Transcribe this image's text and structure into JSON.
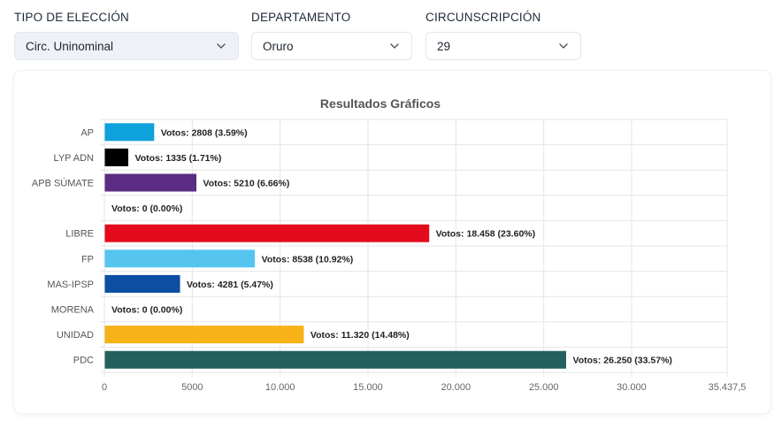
{
  "filters": {
    "election_type": {
      "label": "TIPO DE ELECCIÓN",
      "value": "Circ. Uninominal"
    },
    "department": {
      "label": "DEPARTAMENTO",
      "value": "Oruro"
    },
    "constituency": {
      "label": "CIRCUNSCRIPCIÓN",
      "value": "29"
    }
  },
  "chart_data": {
    "type": "bar",
    "orientation": "horizontal",
    "title": "Resultados Gráficos",
    "categories": [
      "AP",
      "LYP ADN",
      "APB SÚMATE",
      "",
      "LIBRE",
      "FP",
      "MAS-IPSP",
      "MORENA",
      "UNIDAD",
      "PDC"
    ],
    "values": [
      2808,
      1335,
      5210,
      0,
      18458,
      8538,
      4281,
      0,
      11320,
      26250
    ],
    "data_labels": [
      "Votos: 2808 (3.59%)",
      "Votos: 1335 (1.71%)",
      "Votos: 5210 (6.66%)",
      "Votos: 0 (0.00%)",
      "Votos: 18.458 (23.60%)",
      "Votos: 8538 (10.92%)",
      "Votos: 4281 (5.47%)",
      "Votos: 0 (0.00%)",
      "Votos: 11.320 (14.48%)",
      "Votos: 26.250 (33.57%)"
    ],
    "colors": [
      "#0ea1dc",
      "#000000",
      "#5b2d82",
      "#cccccc",
      "#e30b1c",
      "#55c5f0",
      "#0b4ea2",
      "#8b1a1a",
      "#f7b217",
      "#23605f"
    ],
    "x_ticks": [
      0,
      5000,
      10000,
      15000,
      20000,
      25000,
      30000,
      35437.5
    ],
    "x_tick_labels": [
      "0",
      "5000",
      "10.000",
      "15.000",
      "20.000",
      "25.000",
      "30.000",
      "35.437,5"
    ],
    "xlim": [
      0,
      35437.5
    ],
    "grid": true,
    "legend": "none"
  }
}
